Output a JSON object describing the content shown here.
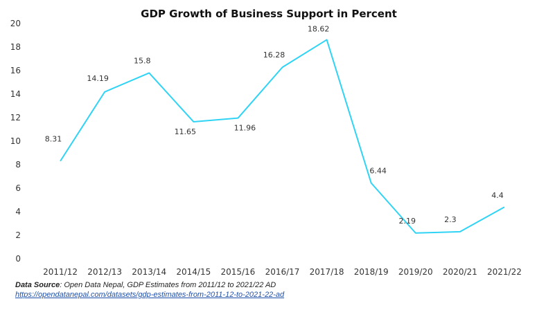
{
  "chart_data": {
    "type": "line",
    "title": "GDP Growth of Business Support in Percent",
    "xlabel": "",
    "ylabel": "",
    "categories": [
      "2011/12",
      "2012/13",
      "2013/14",
      "2014/15",
      "2015/16",
      "2016/17",
      "2017/18",
      "2018/19",
      "2019/20",
      "2020/21",
      "2021/22"
    ],
    "series": [
      {
        "values": [
          8.31,
          14.19,
          15.8,
          11.65,
          11.96,
          16.28,
          18.62,
          6.44,
          2.19,
          2.3,
          4.4
        ],
        "labels": [
          "8.31",
          "14.19",
          "15.8",
          "11.65",
          "11.96",
          "16.28",
          "18.62",
          "6.44",
          "2.19",
          "2.3",
          "4.4"
        ],
        "color": "#2fd3f5"
      }
    ],
    "ylim": [
      0,
      20
    ],
    "yticks": [
      "0",
      "2",
      "4",
      "6",
      "8",
      "10",
      "12",
      "14",
      "16",
      "18",
      "20"
    ],
    "grid": false,
    "legend": "none"
  },
  "source": {
    "prefix": "Data Source",
    "text": ": Open Data Nepal,  GDP Estimates from 2011/12 to 2021/22 AD",
    "link": "https://opendatanepal.com/datasets/gdp-estimates-from-2011-12-to-2021-22-ad"
  }
}
